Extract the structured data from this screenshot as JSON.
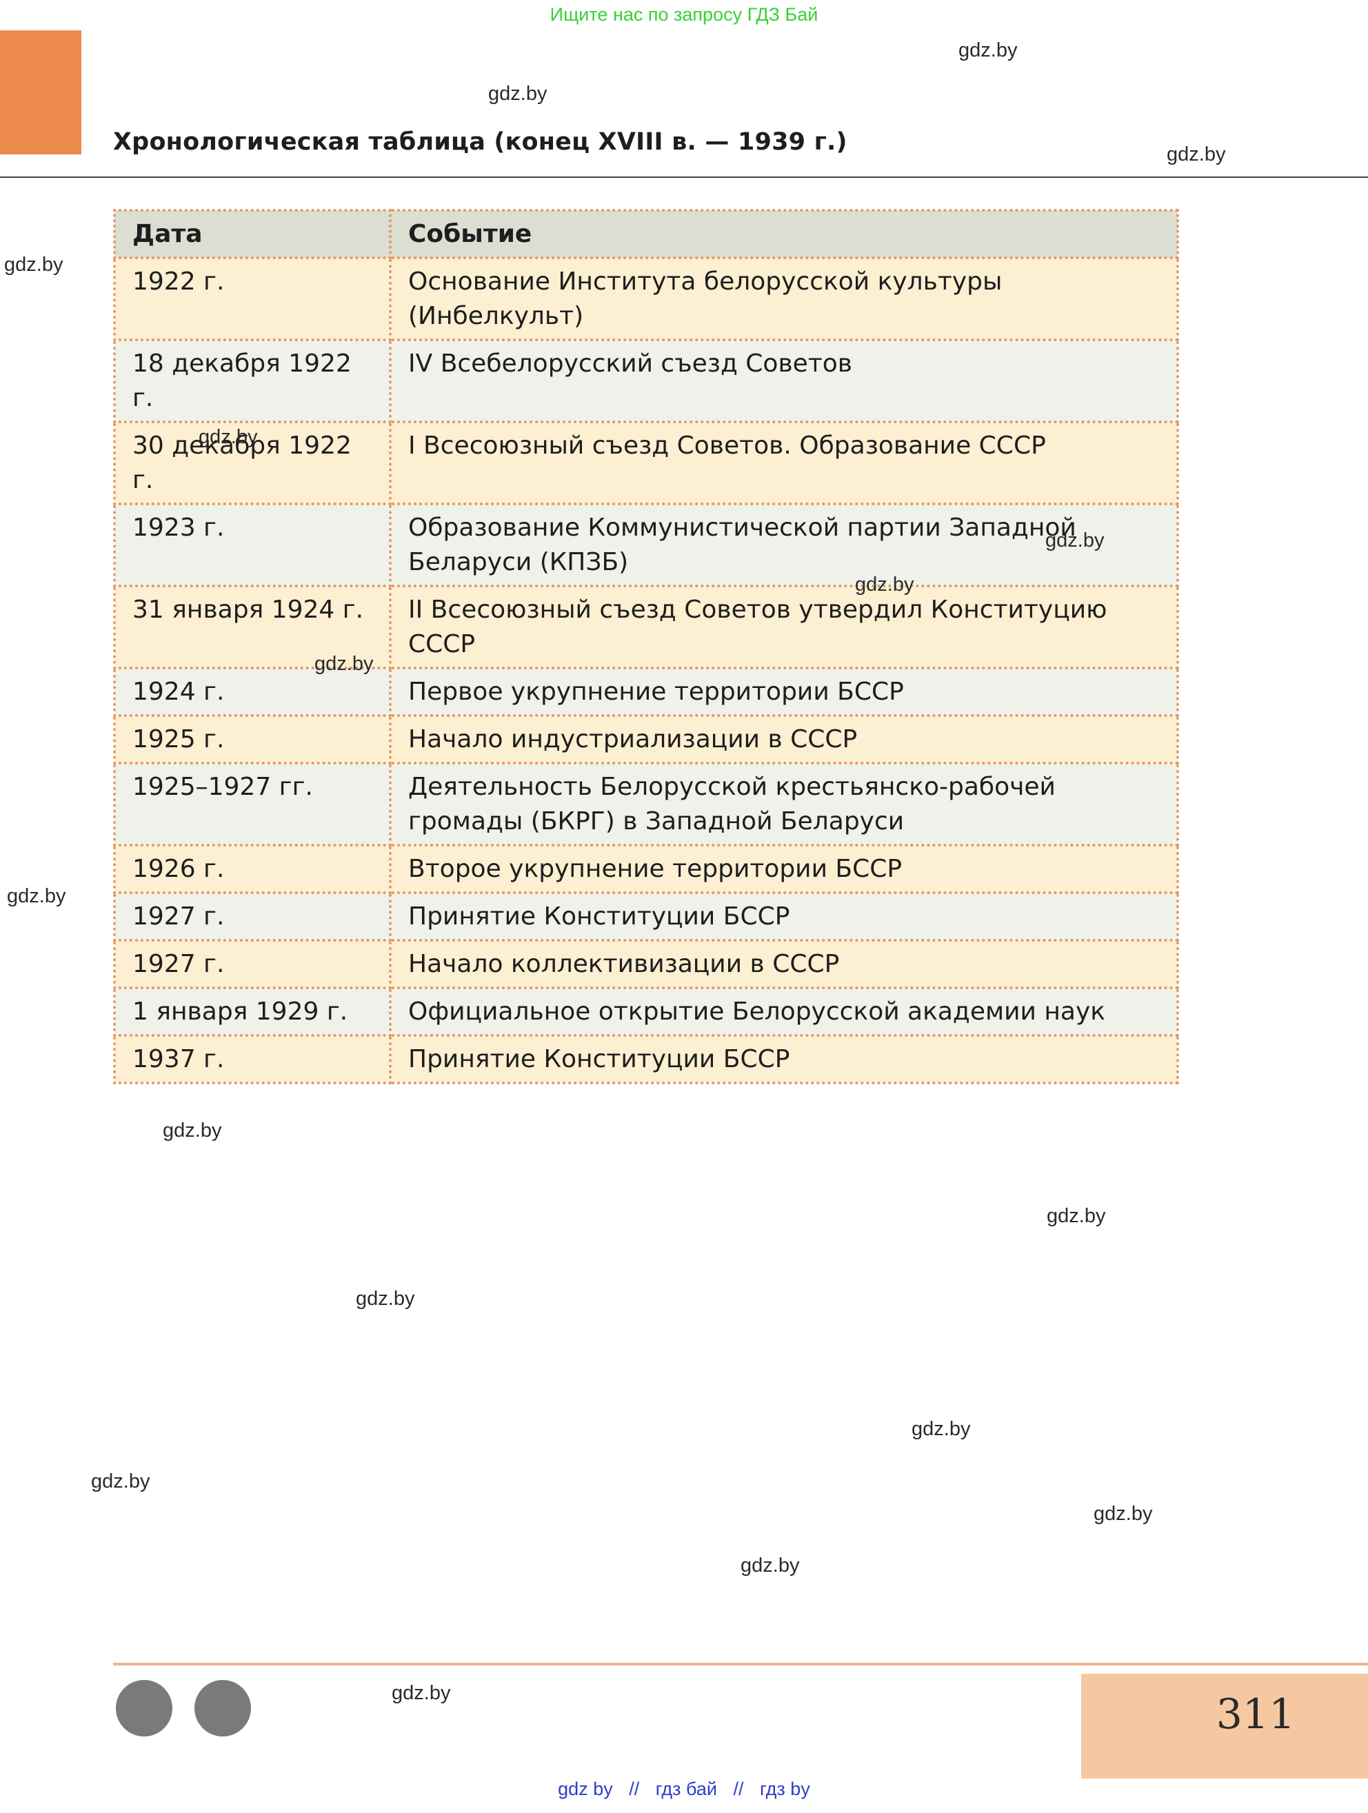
{
  "top_note": "Ищите нас по запросу ГДЗ Бай",
  "header": {
    "title": "Хронологическая таблица (конец XVIII в. — 1939 г.)"
  },
  "watermark": "gdz.by",
  "table": {
    "columns": [
      "Дата",
      "Событие"
    ],
    "rows": [
      {
        "date": "1922 г.",
        "event": "Основание Института белорусской культуры (Инбелкульт)"
      },
      {
        "date": "18 декабря 1922 г.",
        "event": "IV Всебелорусский съезд Советов"
      },
      {
        "date": "30 декабря 1922 г.",
        "event": "I Всесоюзный съезд Советов. Образование СССР"
      },
      {
        "date": "1923 г.",
        "event": "Образование Коммунистической партии Западной Беларуси (КПЗБ)"
      },
      {
        "date": "31 января 1924 г.",
        "event": "II Всесоюзный съезд Советов утвердил Конституцию СССР"
      },
      {
        "date": "1924 г.",
        "event": "Первое укрупнение территории БССР"
      },
      {
        "date": "1925 г.",
        "event": "Начало индустриализации в СССР"
      },
      {
        "date": "1925–1927 гг.",
        "event": "Деятельность Белорусской крестьянско-рабочей громады (БКРГ) в Западной Беларуси"
      },
      {
        "date": "1926 г.",
        "event": "Второе укрупнение территории БССР"
      },
      {
        "date": "1927 г.",
        "event": "Принятие Конституции БССР"
      },
      {
        "date": "1927 г.",
        "event": "Начало коллективизации в СССР"
      },
      {
        "date": "1 января 1929 г.",
        "event": "Официальное открытие Белорусской академии наук"
      },
      {
        "date": "1937 г.",
        "event": "Принятие Конституции БССР"
      }
    ]
  },
  "page_number": "311",
  "footer_links": [
    "gdz by",
    "гдз бай",
    "гдз by"
  ],
  "footer_separator": "//",
  "colors": {
    "accent_orange": "#ec8a4c",
    "page_box": "#f6c8a2",
    "table_border": "#e49860",
    "row_odd": "#fdefd2",
    "row_even": "#eef2ea",
    "header_row": "#dadfd2",
    "top_note_green": "#35d135",
    "footer_blue": "#2a3fc5"
  }
}
